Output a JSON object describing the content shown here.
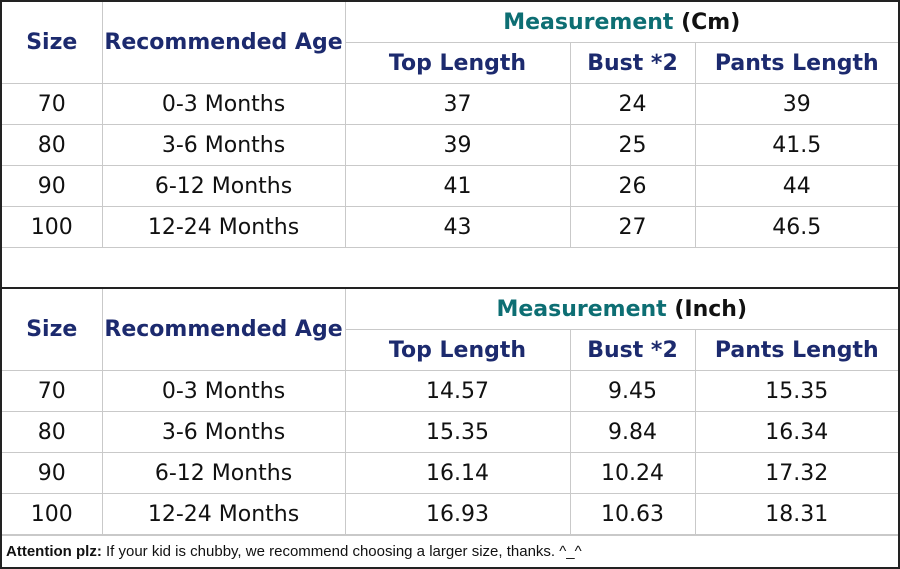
{
  "tables": [
    {
      "headers": {
        "size": "Size",
        "age": "Recommended Age",
        "measurement_word": "Measurement",
        "measurement_unit": "(Cm)",
        "top_length": "Top Length",
        "bust": "Bust *2",
        "pants_length": "Pants Length"
      },
      "rows": [
        {
          "size": "70",
          "age": "0-3 Months",
          "top": "37",
          "bust": "24",
          "pants": "39"
        },
        {
          "size": "80",
          "age": "3-6 Months",
          "top": "39",
          "bust": "25",
          "pants": "41.5"
        },
        {
          "size": "90",
          "age": "6-12 Months",
          "top": "41",
          "bust": "26",
          "pants": "44"
        },
        {
          "size": "100",
          "age": "12-24 Months",
          "top": "43",
          "bust": "27",
          "pants": "46.5"
        }
      ]
    },
    {
      "headers": {
        "size": "Size",
        "age": "Recommended Age",
        "measurement_word": "Measurement",
        "measurement_unit": "(Inch)",
        "top_length": "Top Length",
        "bust": "Bust *2",
        "pants_length": "Pants Length"
      },
      "rows": [
        {
          "size": "70",
          "age": "0-3 Months",
          "top": "14.57",
          "bust": "9.45",
          "pants": "15.35"
        },
        {
          "size": "80",
          "age": "3-6 Months",
          "top": "15.35",
          "bust": "9.84",
          "pants": "16.34"
        },
        {
          "size": "90",
          "age": "6-12 Months",
          "top": "16.14",
          "bust": "10.24",
          "pants": "17.32"
        },
        {
          "size": "100",
          "age": "12-24 Months",
          "top": "16.93",
          "bust": "10.63",
          "pants": "18.31"
        }
      ]
    }
  ],
  "footer": {
    "label": "Attention plz:",
    "text": " If your kid is chubby, we recommend choosing a larger size, thanks. ^_^"
  },
  "colors": {
    "header_text": "#1c2a6e",
    "measurement_word": "#0d6e73",
    "border": "#222222",
    "grid": "#c9c9c9"
  }
}
